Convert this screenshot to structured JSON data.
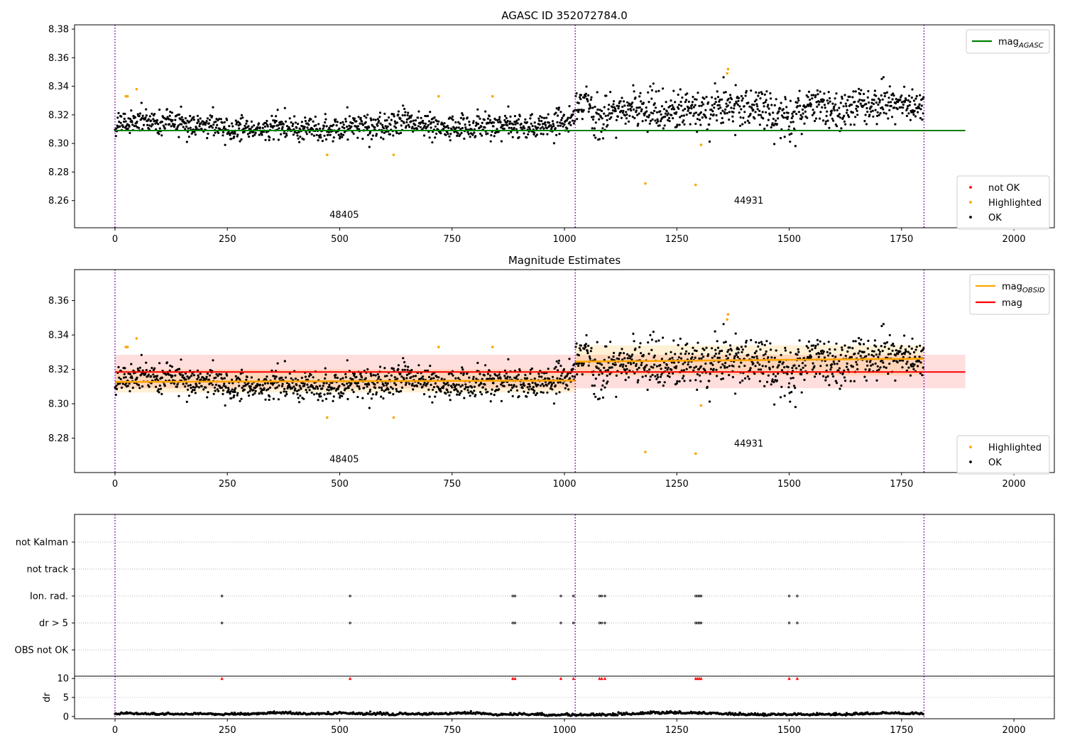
{
  "figure": {
    "title": "AGASC ID 352072784.0"
  },
  "chart_data": [
    {
      "id": "panel1",
      "type": "scatter",
      "title": "AGASC ID 352072784.0",
      "xlim": [
        -90,
        2090
      ],
      "ylim": [
        8.241,
        8.383
      ],
      "xticks": [
        0,
        250,
        500,
        750,
        1000,
        1250,
        1500,
        1750,
        2000
      ],
      "xtick_labels": [
        "0",
        "250",
        "500",
        "750",
        "1000",
        "1250",
        "1500",
        "1750",
        "2000"
      ],
      "yticks": [
        8.26,
        8.28,
        8.3,
        8.32,
        8.34,
        8.36,
        8.38
      ],
      "ytick_labels": [
        "8.26",
        "8.28",
        "8.30",
        "8.32",
        "8.34",
        "8.36",
        "8.38"
      ],
      "obs_boundaries": [
        0,
        1024,
        1800
      ],
      "obs_labels": [
        {
          "text": "48405",
          "x": 510,
          "y": 8.248
        },
        {
          "text": "44931",
          "x": 1410,
          "y": 8.258
        }
      ],
      "reference_lines": [
        {
          "name": "mag_AGASC",
          "y": 8.309,
          "x_range": [
            0,
            1892
          ],
          "color": "#008000"
        }
      ],
      "legend_upper": [
        {
          "label": "mag",
          "subscript": "AGASC",
          "kind": "line",
          "color": "#008000"
        }
      ],
      "legend_lower": [
        {
          "label": "not OK",
          "kind": "point",
          "color": "#ff0000"
        },
        {
          "label": "Highlighted",
          "kind": "point",
          "color": "#ffa500"
        },
        {
          "label": "OK",
          "kind": "point",
          "color": "#000000"
        }
      ],
      "series_ok": {
        "segments": [
          {
            "x_range": [
              0,
              1024
            ],
            "mean": 8.3135,
            "spread": 0.0055
          },
          {
            "x_range": [
              1024,
              1800
            ],
            "mean": 8.3255,
            "spread": 0.0085
          }
        ],
        "approx_point_count": 1800,
        "color": "#000000"
      },
      "series_highlighted": {
        "color": "#ffa500",
        "points": [
          [
            24,
            8.333
          ],
          [
            28,
            8.333
          ],
          [
            48,
            8.338
          ],
          [
            472,
            8.292
          ],
          [
            620,
            8.292
          ],
          [
            720,
            8.333
          ],
          [
            840,
            8.333
          ],
          [
            1180,
            8.272
          ],
          [
            1292,
            8.271
          ],
          [
            1304,
            8.299
          ],
          [
            1362,
            8.349
          ],
          [
            1364,
            8.352
          ]
        ]
      }
    },
    {
      "id": "panel2",
      "type": "scatter",
      "title": "Magnitude Estimates",
      "xlim": [
        -90,
        2090
      ],
      "ylim": [
        8.26,
        8.378
      ],
      "xticks": [
        0,
        250,
        500,
        750,
        1000,
        1250,
        1500,
        1750,
        2000
      ],
      "xtick_labels": [
        "0",
        "250",
        "500",
        "750",
        "1000",
        "1250",
        "1500",
        "1750",
        "2000"
      ],
      "yticks": [
        8.28,
        8.3,
        8.32,
        8.34,
        8.36
      ],
      "ytick_labels": [
        "8.28",
        "8.30",
        "8.32",
        "8.34",
        "8.36"
      ],
      "obs_boundaries": [
        0,
        1024,
        1800
      ],
      "obs_labels": [
        {
          "text": "48405",
          "x": 510,
          "y": 8.266
        },
        {
          "text": "44931",
          "x": 1410,
          "y": 8.275
        }
      ],
      "mag": {
        "y": 8.3185,
        "band": [
          8.309,
          8.3285
        ],
        "x_range": [
          0,
          1892
        ],
        "color": "#ff0000"
      },
      "mag_obsid": [
        {
          "x_range": [
            0,
            1024
          ],
          "y_start": 8.3127,
          "y_end": 8.3135,
          "band": [
            8.3065,
            8.32
          ],
          "color": "#ffa500"
        },
        {
          "x_range": [
            1024,
            1800
          ],
          "y_start": 8.3245,
          "y_end": 8.3262,
          "band": [
            8.3165,
            8.334
          ],
          "color": "#ffa500"
        }
      ],
      "legend_upper": [
        {
          "label": "mag",
          "subscript": "OBSID",
          "kind": "line",
          "color": "#ffa500"
        },
        {
          "label": "mag",
          "subscript": "",
          "kind": "line",
          "color": "#ff0000"
        }
      ],
      "legend_lower": [
        {
          "label": "Highlighted",
          "kind": "point",
          "color": "#ffa500"
        },
        {
          "label": "OK",
          "kind": "point",
          "color": "#000000"
        }
      ]
    },
    {
      "id": "panel3",
      "type": "scatter",
      "title": "",
      "xlim": [
        -90,
        2090
      ],
      "categories": [
        "not Kalman",
        "not track",
        "Ion. rad.",
        "dr > 5",
        "OBS not OK"
      ],
      "flag_points": {
        "Ion. rad.": [
          238,
          523,
          885,
          890,
          992,
          1020,
          1078,
          1083,
          1090,
          1292,
          1296,
          1300,
          1304,
          1500,
          1518
        ],
        "dr > 5": [
          238,
          523,
          885,
          890,
          992,
          1020,
          1078,
          1083,
          1090,
          1292,
          1296,
          1300,
          1304,
          1500,
          1518
        ]
      },
      "obs_boundaries": [
        0,
        1024,
        1800
      ]
    },
    {
      "id": "panel4",
      "type": "scatter",
      "ylabel": "dr",
      "xlim": [
        -90,
        2090
      ],
      "ylim": [
        -0.6,
        10.6
      ],
      "xticks": [
        0,
        250,
        500,
        750,
        1000,
        1250,
        1500,
        1750,
        2000
      ],
      "xtick_labels": [
        "0",
        "250",
        "500",
        "750",
        "1000",
        "1250",
        "1500",
        "1750",
        "2000"
      ],
      "yticks": [
        0,
        5,
        10
      ],
      "ytick_labels": [
        "0",
        "5",
        "10"
      ],
      "obs_boundaries": [
        0,
        1024,
        1800
      ],
      "clipped_markers": {
        "y": 10,
        "color": "#ff0000",
        "x": [
          238,
          523,
          885,
          890,
          992,
          1020,
          1078,
          1083,
          1090,
          1292,
          1296,
          1300,
          1304,
          1500,
          1518
        ]
      },
      "dr_series": {
        "x_range": [
          0,
          1800
        ],
        "baseline": 0.5,
        "color": "#000000"
      }
    }
  ]
}
